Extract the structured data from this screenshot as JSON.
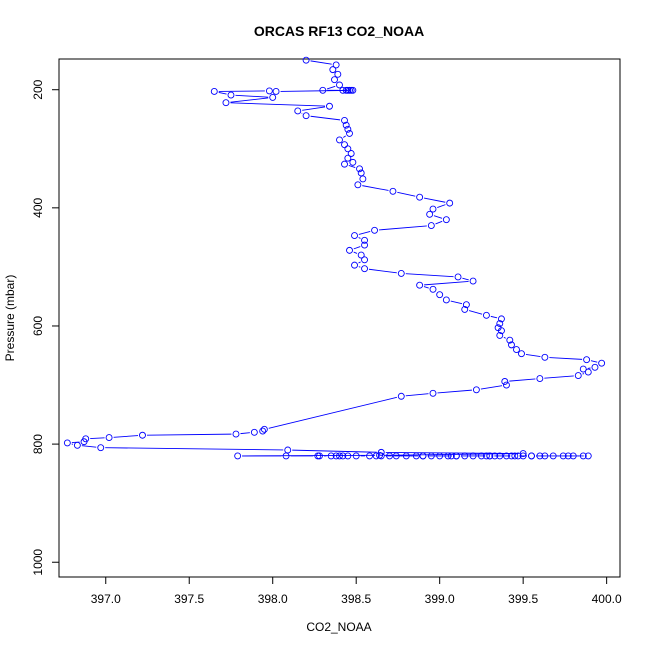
{
  "chart_data": {
    "type": "line",
    "title": "ORCAS RF13 CO2_NOAA",
    "xlabel": "CO2_NOAA",
    "ylabel": "Pressure (mbar)",
    "xlim": [
      396.72,
      400.08
    ],
    "ylim": [
      1025,
      148
    ],
    "y_reversed": true,
    "grid": false,
    "legend": "none",
    "x_ticks": [
      {
        "value": 397.0,
        "label": "397.0"
      },
      {
        "value": 397.5,
        "label": "397.5"
      },
      {
        "value": 398.0,
        "label": "398.0"
      },
      {
        "value": 398.5,
        "label": "398.5"
      },
      {
        "value": 399.0,
        "label": "399.0"
      },
      {
        "value": 399.5,
        "label": "399.5"
      },
      {
        "value": 400.0,
        "label": "400.0"
      }
    ],
    "y_ticks": [
      {
        "value": 200,
        "label": "200"
      },
      {
        "value": 400,
        "label": "400"
      },
      {
        "value": 600,
        "label": "600"
      },
      {
        "value": 800,
        "label": "800"
      },
      {
        "value": 1000,
        "label": "1000"
      }
    ],
    "series": [
      {
        "color": "#0000ff",
        "marker": "open-circle",
        "points": [
          [
            398.2,
            150
          ],
          [
            398.38,
            158
          ],
          [
            398.36,
            166
          ],
          [
            398.39,
            174
          ],
          [
            398.37,
            183
          ],
          [
            398.4,
            192
          ],
          [
            398.3,
            201
          ],
          [
            398.42,
            201
          ],
          [
            398.44,
            201
          ],
          [
            398.45,
            201
          ],
          [
            398.46,
            201
          ],
          [
            398.47,
            201
          ],
          [
            398.48,
            201
          ],
          [
            398.02,
            203
          ],
          [
            397.98,
            202
          ],
          [
            397.65,
            203
          ],
          [
            397.75,
            209
          ],
          [
            398.0,
            213
          ],
          [
            397.72,
            222
          ],
          [
            398.34,
            228
          ],
          [
            398.15,
            236
          ],
          [
            398.2,
            244
          ],
          [
            398.43,
            252
          ],
          [
            398.44,
            260
          ],
          [
            398.45,
            267
          ],
          [
            398.46,
            274
          ],
          [
            398.4,
            285
          ],
          [
            398.43,
            293
          ],
          [
            398.45,
            300
          ],
          [
            398.47,
            308
          ],
          [
            398.45,
            316
          ],
          [
            398.48,
            323
          ],
          [
            398.43,
            326
          ],
          [
            398.52,
            334
          ],
          [
            398.53,
            341
          ],
          [
            398.54,
            351
          ],
          [
            398.51,
            361
          ],
          [
            398.72,
            372
          ],
          [
            398.88,
            382
          ],
          [
            399.06,
            392
          ],
          [
            398.96,
            402
          ],
          [
            398.94,
            411
          ],
          [
            399.04,
            420
          ],
          [
            398.95,
            430
          ],
          [
            398.61,
            438
          ],
          [
            398.49,
            447
          ],
          [
            398.55,
            455
          ],
          [
            398.55,
            463
          ],
          [
            398.46,
            472
          ],
          [
            398.53,
            480
          ],
          [
            398.55,
            488
          ],
          [
            398.49,
            497
          ],
          [
            398.55,
            503
          ],
          [
            398.77,
            511
          ],
          [
            399.11,
            517
          ],
          [
            399.2,
            524
          ],
          [
            398.88,
            531
          ],
          [
            398.96,
            538
          ],
          [
            399.0,
            547
          ],
          [
            399.04,
            556
          ],
          [
            399.16,
            564
          ],
          [
            399.15,
            572
          ],
          [
            399.28,
            582
          ],
          [
            399.37,
            588
          ],
          [
            399.36,
            596
          ],
          [
            399.35,
            603
          ],
          [
            399.37,
            608
          ],
          [
            399.36,
            616
          ],
          [
            399.42,
            624
          ],
          [
            399.43,
            632
          ],
          [
            399.46,
            640
          ],
          [
            399.49,
            647
          ],
          [
            399.63,
            653
          ],
          [
            399.88,
            657
          ],
          [
            399.97,
            663
          ],
          [
            399.93,
            670
          ],
          [
            399.86,
            673
          ],
          [
            399.89,
            678
          ],
          [
            399.83,
            684
          ],
          [
            399.6,
            689
          ],
          [
            399.39,
            694
          ],
          [
            399.4,
            700
          ],
          [
            399.22,
            708
          ],
          [
            398.96,
            714
          ],
          [
            398.77,
            719
          ],
          [
            397.95,
            775
          ],
          [
            397.94,
            778
          ],
          [
            397.89,
            780
          ],
          [
            397.78,
            783
          ],
          [
            397.22,
            785
          ],
          [
            397.02,
            789
          ],
          [
            396.88,
            791
          ],
          [
            396.87,
            796
          ],
          [
            396.77,
            798
          ],
          [
            396.83,
            802
          ],
          [
            396.97,
            806
          ],
          [
            398.09,
            810
          ],
          [
            398.65,
            814
          ],
          [
            399.5,
            816
          ],
          [
            398.64,
            819
          ],
          [
            397.79,
            820
          ],
          [
            398.08,
            820
          ],
          [
            398.27,
            820
          ],
          [
            398.28,
            820
          ],
          [
            398.35,
            820
          ],
          [
            398.38,
            820
          ],
          [
            398.4,
            820
          ],
          [
            398.42,
            820
          ],
          [
            398.45,
            820
          ],
          [
            398.5,
            820
          ],
          [
            398.58,
            820
          ],
          [
            398.62,
            820
          ],
          [
            398.65,
            820
          ],
          [
            398.74,
            820
          ],
          [
            398.8,
            820
          ],
          [
            398.86,
            820
          ],
          [
            398.9,
            820
          ],
          [
            398.95,
            820
          ],
          [
            399.0,
            820
          ],
          [
            399.05,
            820
          ],
          [
            399.07,
            820
          ],
          [
            399.1,
            820
          ],
          [
            399.15,
            820
          ],
          [
            399.2,
            820
          ],
          [
            399.25,
            820
          ],
          [
            399.28,
            820
          ],
          [
            399.3,
            820
          ],
          [
            399.33,
            820
          ],
          [
            399.36,
            820
          ],
          [
            399.4,
            820
          ],
          [
            399.43,
            820
          ],
          [
            399.47,
            820
          ],
          [
            399.5,
            820
          ],
          [
            399.55,
            820
          ],
          [
            399.6,
            820
          ],
          [
            399.63,
            820
          ],
          [
            399.68,
            820
          ],
          [
            399.74,
            820
          ],
          [
            399.77,
            820
          ],
          [
            399.8,
            820
          ],
          [
            399.86,
            820
          ],
          [
            399.89,
            820
          ],
          [
            399.55,
            820
          ],
          [
            399.45,
            820
          ],
          [
            399.3,
            820
          ],
          [
            399.1,
            820
          ],
          [
            398.9,
            820
          ],
          [
            398.7,
            820
          ]
        ]
      }
    ]
  }
}
